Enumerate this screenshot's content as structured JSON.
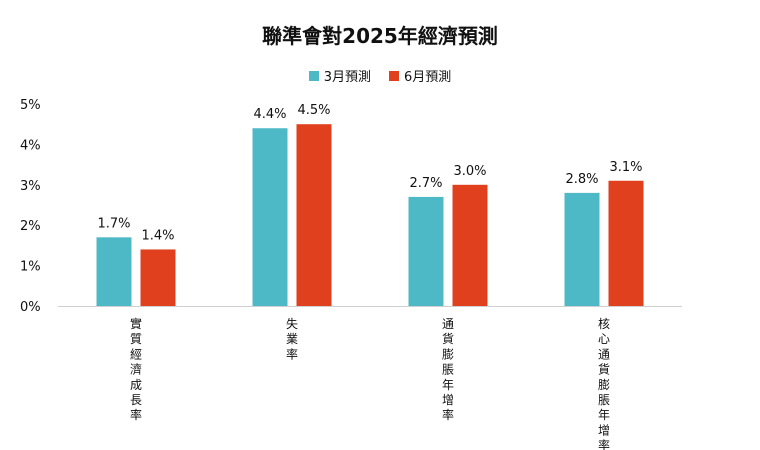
{
  "chart_data": {
    "type": "bar",
    "title": "聯準會對2025年經濟預測",
    "categories": [
      "實質經濟成長率",
      "失業率",
      "通貨膨脹年增率",
      "核心通貨膨脹年增率"
    ],
    "series": [
      {
        "name": "3月預測",
        "values": [
          1.7,
          4.4,
          2.7,
          2.8
        ],
        "labels": [
          "1.7%",
          "4.4%",
          "2.7%",
          "2.8%"
        ],
        "color": "#4db8c6"
      },
      {
        "name": "6月預測",
        "values": [
          1.4,
          4.5,
          3.0,
          3.1
        ],
        "labels": [
          "1.4%",
          "4.5%",
          "3.0%",
          "3.1%"
        ],
        "color": "#e0401e"
      }
    ],
    "y_ticks": [
      0,
      1,
      2,
      3,
      4,
      5
    ],
    "y_tick_labels": [
      "0%",
      "1%",
      "2%",
      "3%",
      "4%",
      "5%"
    ],
    "ylim": [
      0,
      5
    ],
    "xlabel": "",
    "ylabel": "",
    "grid": false,
    "legend_position": "top-center"
  }
}
